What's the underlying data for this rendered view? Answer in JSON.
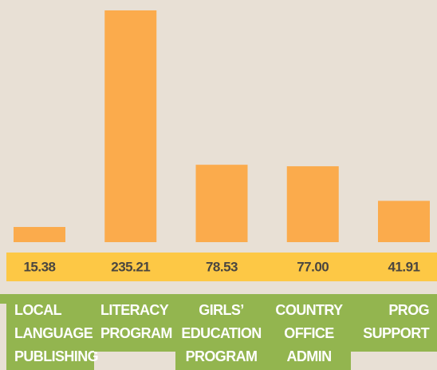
{
  "chart_data": {
    "type": "bar",
    "categories": [
      "LOCAL\nLANGUAGE\nPUBLISHING",
      "LITERACY\nPROGRAM",
      "GIRLS’\nEDUCATION\nPROGRAM",
      "COUNTRY\nOFFICE\nADMIN",
      "PROG\nSUPPORT"
    ],
    "values": [
      15.38,
      235.21,
      78.53,
      77,
      41.91
    ],
    "value_labels": [
      "15.38",
      "235.21",
      "78.53",
      "77.00",
      "41.91"
    ],
    "color": "#fbab4c"
  }
}
